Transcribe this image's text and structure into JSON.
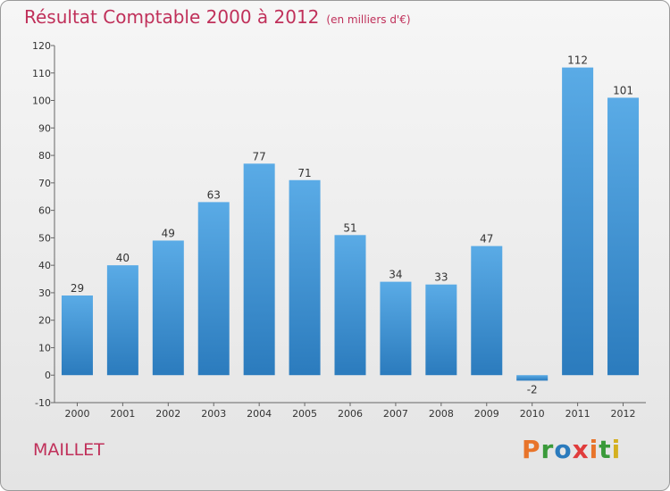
{
  "header": {
    "title": "Résultat Comptable 2000 à 2012",
    "subtitle": "(en milliers d'€)"
  },
  "commune": "MAILLET",
  "logo": {
    "text": "Proxiti"
  },
  "colors": {
    "bar_light": "#5aabe6",
    "bar_dark": "#2b7bbd",
    "title": "#c0305a"
  },
  "chart_data": {
    "type": "bar",
    "title": "Résultat Comptable 2000 à 2012",
    "unit": "(en milliers d'€)",
    "xlabel": "",
    "ylabel": "",
    "categories": [
      "2000",
      "2001",
      "2002",
      "2003",
      "2004",
      "2005",
      "2006",
      "2007",
      "2008",
      "2009",
      "2010",
      "2011",
      "2012"
    ],
    "values": [
      29,
      40,
      49,
      63,
      77,
      71,
      51,
      34,
      33,
      47,
      -2,
      112,
      101
    ],
    "ylim": [
      -10,
      120
    ],
    "yticks": [
      -10,
      0,
      10,
      20,
      30,
      40,
      50,
      60,
      70,
      80,
      90,
      100,
      110,
      120
    ],
    "grid": false
  }
}
